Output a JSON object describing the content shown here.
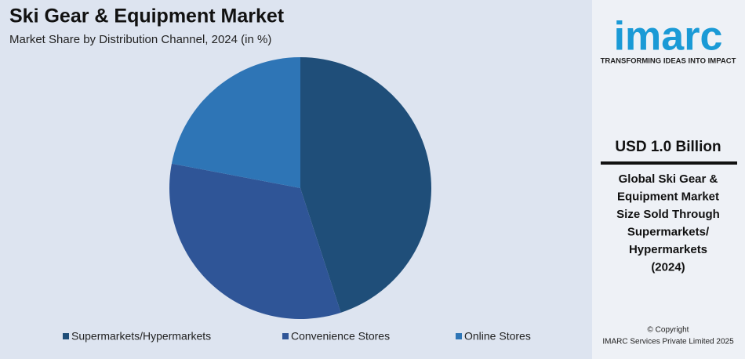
{
  "chart_data": {
    "type": "pie",
    "title": "Ski Gear & Equipment Market",
    "subtitle": "Market Share by Distribution Channel, 2024 (in %)",
    "categories": [
      "Supermarkets/Hypermarkets",
      "Convenience Stores",
      "Online Stores"
    ],
    "values": [
      45,
      33,
      22
    ],
    "colors": [
      "#1f4e79",
      "#2f5597",
      "#2e75b6"
    ]
  },
  "sidebar": {
    "logo": "imarc",
    "tagline": "TRANSFORMING IDEAS INTO IMPACT",
    "headline": "USD 1.0 Billion",
    "description": [
      "Global Ski Gear &",
      "Equipment Market",
      "Size Sold Through",
      "Supermarkets/",
      "Hypermarkets",
      "(2024)"
    ],
    "copyright": "© Copyright",
    "company": "IMARC Services Private Limited 2025"
  }
}
